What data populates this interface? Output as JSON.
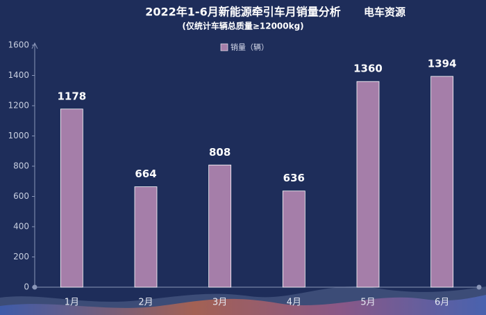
{
  "chart_data": {
    "type": "bar",
    "title": "2022年1-6月新能源牵引车月销量分析",
    "brand": "电车资源",
    "subtitle": "(仅统计车辆总质量≥12000kg)",
    "categories": [
      "1月",
      "2月",
      "3月",
      "4月",
      "5月",
      "6月"
    ],
    "series": [
      {
        "name": "销量（辆）",
        "color": "#a57ea9",
        "values": [
          1178,
          664,
          808,
          636,
          1360,
          1394
        ]
      }
    ],
    "ylim": [
      0,
      1600
    ],
    "yticks": [
      0,
      200,
      400,
      600,
      800,
      1000,
      1200,
      1400,
      1600
    ],
    "grid": false,
    "legend": "top"
  }
}
